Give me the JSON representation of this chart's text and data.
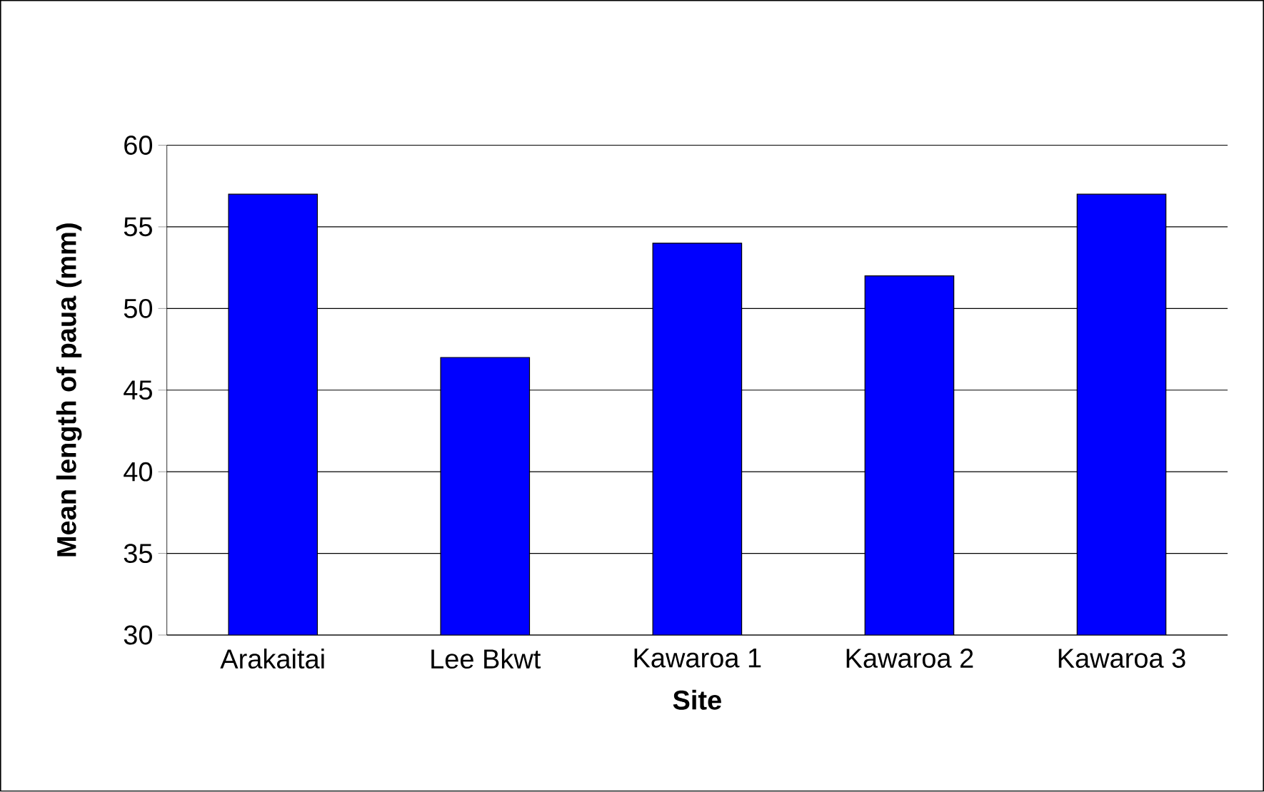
{
  "chart_data": {
    "type": "bar",
    "categories": [
      "Arakaitai",
      "Lee Bkwt",
      "Kawaroa 1",
      "Kawaroa 2",
      "Kawaroa 3"
    ],
    "values": [
      57,
      47,
      54,
      52,
      57
    ],
    "color": "#0000ff",
    "xlabel": "Site",
    "ylabel": "Mean length of paua (mm)",
    "ylim": [
      30,
      60
    ],
    "yticks": [
      30,
      35,
      40,
      45,
      50,
      55,
      60
    ],
    "grid": "y"
  }
}
